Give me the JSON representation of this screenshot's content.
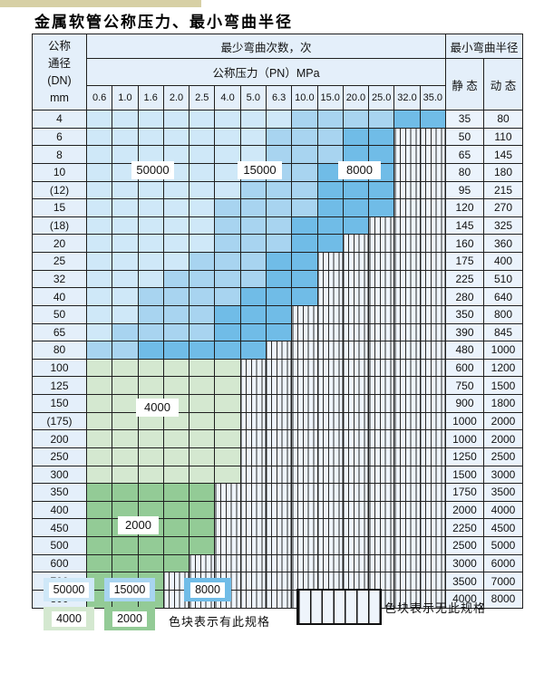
{
  "title": "金属软管公称压力、最小弯曲半径",
  "colors": {
    "A": "#cfe8f8",
    "B": "#a8d4f0",
    "C": "#70bce7",
    "D": "#d4e8d0",
    "E": "#93cb96",
    "hatch_bg": "#eef4fb",
    "hatch_line": "#2b2b2b",
    "grid": "#1f1f1f",
    "scan_strip": "#d7d0a5"
  },
  "band_meaning": {
    "A": "50000",
    "B": "15000",
    "C": "8000",
    "D": "4000",
    "E": "2000",
    "-": "无此规格"
  },
  "table": {
    "header": {
      "dn_lines": [
        "公称",
        "通径",
        "(DN)",
        "mm"
      ],
      "bend_cycles_label": "最少弯曲次数，次",
      "pressure_label": "公称压力（PN）MPa",
      "pressure_values": [
        "0.6",
        "1.0",
        "1.6",
        "2.0",
        "2.5",
        "4.0",
        "5.0",
        "6.3",
        "10.0",
        "15.0",
        "20.0",
        "25.0",
        "32.0",
        "35.0"
      ],
      "radius_label": "最小弯曲半径",
      "static_label": "静 态",
      "dynamic_label": "动 态"
    },
    "rows": [
      {
        "dn": "4",
        "cells": "AAAAAAAABBBBCC",
        "static": "35",
        "dynamic": "80"
      },
      {
        "dn": "6",
        "cells": "AAAAAAABBBCC--",
        "static": "50",
        "dynamic": "110"
      },
      {
        "dn": "8",
        "cells": "AAAAAAABBBCC--",
        "static": "65",
        "dynamic": "145"
      },
      {
        "dn": "10",
        "cells": "AAAAAABBBCCC--",
        "static": "80",
        "dynamic": "180"
      },
      {
        "dn": "(12)",
        "cells": "AAAAAABBBCCC--",
        "static": "95",
        "dynamic": "215"
      },
      {
        "dn": "15",
        "cells": "AAAAABBBBCCC--",
        "static": "120",
        "dynamic": "270"
      },
      {
        "dn": "(18)",
        "cells": "AAAAABBBCCC---",
        "static": "145",
        "dynamic": "325"
      },
      {
        "dn": "20",
        "cells": "AAAAABBBCC----",
        "static": "160",
        "dynamic": "360"
      },
      {
        "dn": "25",
        "cells": "AAAABBBCC-----",
        "static": "175",
        "dynamic": "400"
      },
      {
        "dn": "32",
        "cells": "AAABBBBCC-----",
        "static": "225",
        "dynamic": "510"
      },
      {
        "dn": "40",
        "cells": "AABBBBCCC-----",
        "static": "280",
        "dynamic": "640"
      },
      {
        "dn": "50",
        "cells": "AABBBCCC------",
        "static": "350",
        "dynamic": "800"
      },
      {
        "dn": "65",
        "cells": "ABBBBCCC------",
        "static": "390",
        "dynamic": "845"
      },
      {
        "dn": "80",
        "cells": "BBCCCCC-------",
        "static": "480",
        "dynamic": "1000"
      },
      {
        "dn": "100",
        "cells": "DDDDDD--------",
        "static": "600",
        "dynamic": "1200"
      },
      {
        "dn": "125",
        "cells": "DDDDDD--------",
        "static": "750",
        "dynamic": "1500"
      },
      {
        "dn": "150",
        "cells": "DDDDDD--------",
        "static": "900",
        "dynamic": "1800"
      },
      {
        "dn": "(175)",
        "cells": "DDDDDD--------",
        "static": "1000",
        "dynamic": "2000"
      },
      {
        "dn": "200",
        "cells": "DDDDDD--------",
        "static": "1000",
        "dynamic": "2000"
      },
      {
        "dn": "250",
        "cells": "DDDDDD--------",
        "static": "1250",
        "dynamic": "2500"
      },
      {
        "dn": "300",
        "cells": "DDDDDD--------",
        "static": "1500",
        "dynamic": "3000"
      },
      {
        "dn": "350",
        "cells": "EEEEE---------",
        "static": "1750",
        "dynamic": "3500"
      },
      {
        "dn": "400",
        "cells": "EEEEE---------",
        "static": "2000",
        "dynamic": "4000"
      },
      {
        "dn": "450",
        "cells": "EEEEE---------",
        "static": "2250",
        "dynamic": "4500"
      },
      {
        "dn": "500",
        "cells": "EEEEE---------",
        "static": "2500",
        "dynamic": "5000"
      },
      {
        "dn": "600",
        "cells": "EEEE----------",
        "static": "3000",
        "dynamic": "6000"
      },
      {
        "dn": "700",
        "cells": "EEE-----------",
        "static": "3500",
        "dynamic": "7000"
      },
      {
        "dn": "800",
        "cells": "EEE-----------",
        "static": "4000",
        "dynamic": "8000"
      }
    ]
  },
  "zone_labels": [
    {
      "text": "50000"
    },
    {
      "text": "15000"
    },
    {
      "text": "8000"
    },
    {
      "text": "4000"
    },
    {
      "text": "2000"
    }
  ],
  "legend": {
    "swatches": [
      {
        "code": "A",
        "text": "50000"
      },
      {
        "code": "B",
        "text": "15000"
      },
      {
        "code": "C",
        "text": "8000"
      },
      {
        "code": "D",
        "text": "4000"
      },
      {
        "code": "E",
        "text": "2000"
      }
    ],
    "has_spec_text": "色块表示有此规格",
    "no_spec_text": "色块表示无此规格"
  }
}
